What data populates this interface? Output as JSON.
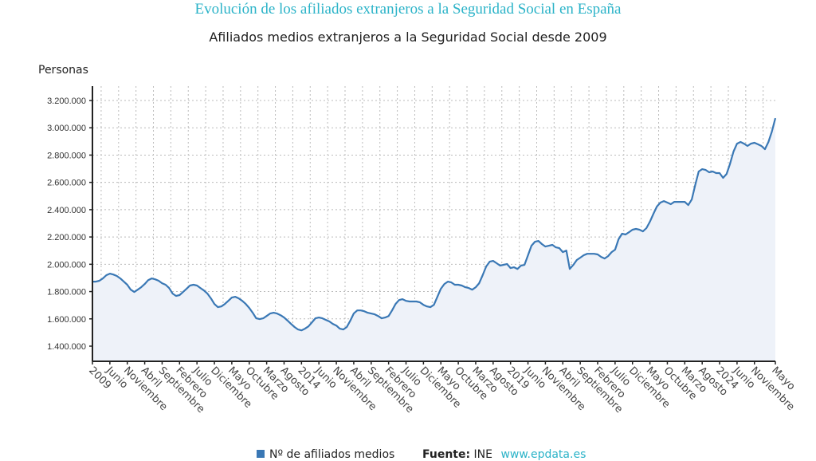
{
  "chart_data": {
    "type": "area",
    "title": "Evolución de los afiliados extranjeros a la Seguridad Social en España",
    "subtitle": "Afiliados medios extranjeros a la Seguridad Social desde 2009",
    "ylabel": "Personas",
    "xlabel": "",
    "ylim": [
      1300000,
      3300000
    ],
    "yticks": [
      1400000,
      1600000,
      1800000,
      2000000,
      2200000,
      2400000,
      2600000,
      2800000,
      3000000,
      3200000
    ],
    "ytick_labels": [
      "1.400.000",
      "1.600.000",
      "1.800.000",
      "2.000.000",
      "2.200.000",
      "2.400.000",
      "2.600.000",
      "2.800.000",
      "3.000.000",
      "3.200.000"
    ],
    "grid": true,
    "x_start": "2009-01",
    "x_end": "2025-05",
    "x_tick_step_months": 5,
    "xtick_labels": [
      "2009",
      "Junio",
      "Noviembre",
      "Abril",
      "Septiembre",
      "Febrero",
      "Julio",
      "Diciembre",
      "Mayo",
      "Octubre",
      "Marzo",
      "Agosto",
      "2014",
      "Junio",
      "Noviembre",
      "Abril",
      "Septiembre",
      "Febrero",
      "Julio",
      "Diciembre",
      "Mayo",
      "Octubre",
      "Marzo",
      "Agosto",
      "2019",
      "Junio",
      "Noviembre",
      "Abril",
      "Septiembre",
      "Febrero",
      "Julio",
      "Diciembre",
      "Mayo",
      "Octubre",
      "Marzo",
      "Agosto",
      "2024",
      "Junio",
      "Noviembre",
      "Mayo"
    ],
    "xtick_months": [
      0,
      5,
      10,
      15,
      20,
      25,
      30,
      35,
      40,
      45,
      50,
      55,
      60,
      65,
      70,
      75,
      80,
      85,
      90,
      95,
      100,
      105,
      110,
      115,
      120,
      125,
      130,
      135,
      140,
      145,
      150,
      155,
      160,
      165,
      170,
      175,
      180,
      185,
      190,
      196
    ],
    "legend_position": "bottom",
    "series": [
      {
        "name": "Nº de afiliados medios",
        "color": "#3a78b5",
        "fill": "#eef2f9",
        "frequency": "monthly",
        "values": [
          1873000,
          1873000,
          1879000,
          1896000,
          1920000,
          1931000,
          1925000,
          1914000,
          1896000,
          1873000,
          1850000,
          1814000,
          1797000,
          1814000,
          1832000,
          1855000,
          1884000,
          1896000,
          1890000,
          1879000,
          1861000,
          1850000,
          1826000,
          1785000,
          1768000,
          1774000,
          1797000,
          1820000,
          1844000,
          1850000,
          1844000,
          1826000,
          1808000,
          1785000,
          1750000,
          1709000,
          1686000,
          1691000,
          1709000,
          1732000,
          1756000,
          1762000,
          1750000,
          1732000,
          1709000,
          1680000,
          1645000,
          1604000,
          1598000,
          1604000,
          1621000,
          1639000,
          1645000,
          1639000,
          1627000,
          1610000,
          1587000,
          1563000,
          1540000,
          1522000,
          1516000,
          1528000,
          1545000,
          1575000,
          1604000,
          1610000,
          1604000,
          1592000,
          1581000,
          1563000,
          1551000,
          1528000,
          1522000,
          1540000,
          1587000,
          1639000,
          1662000,
          1662000,
          1656000,
          1645000,
          1639000,
          1633000,
          1621000,
          1604000,
          1610000,
          1621000,
          1662000,
          1709000,
          1738000,
          1744000,
          1732000,
          1727000,
          1727000,
          1727000,
          1721000,
          1703000,
          1691000,
          1686000,
          1703000,
          1762000,
          1820000,
          1855000,
          1873000,
          1867000,
          1850000,
          1850000,
          1844000,
          1832000,
          1826000,
          1814000,
          1832000,
          1861000,
          1920000,
          1984000,
          2019000,
          2025000,
          2008000,
          1990000,
          1996000,
          2002000,
          1972000,
          1978000,
          1966000,
          1990000,
          1996000,
          2066000,
          2136000,
          2165000,
          2171000,
          2148000,
          2130000,
          2136000,
          2142000,
          2124000,
          2118000,
          2089000,
          2101000,
          1966000,
          1995000,
          2031000,
          2048000,
          2066000,
          2077000,
          2077000,
          2077000,
          2072000,
          2054000,
          2042000,
          2060000,
          2089000,
          2107000,
          2183000,
          2224000,
          2218000,
          2235000,
          2253000,
          2259000,
          2253000,
          2241000,
          2265000,
          2312000,
          2370000,
          2423000,
          2452000,
          2463000,
          2452000,
          2440000,
          2457000,
          2457000,
          2457000,
          2457000,
          2434000,
          2475000,
          2580000,
          2680000,
          2697000,
          2691000,
          2674000,
          2680000,
          2668000,
          2668000,
          2633000,
          2662000,
          2738000,
          2826000,
          2884000,
          2896000,
          2884000,
          2867000,
          2884000,
          2890000,
          2879000,
          2867000,
          2843000,
          2896000,
          2972000,
          3071000
        ]
      }
    ]
  },
  "legend": {
    "series_label": "Nº de afiliados medios",
    "source_label": "Fuente:",
    "source_value": "INE",
    "link_text": "www.epdata.es"
  }
}
